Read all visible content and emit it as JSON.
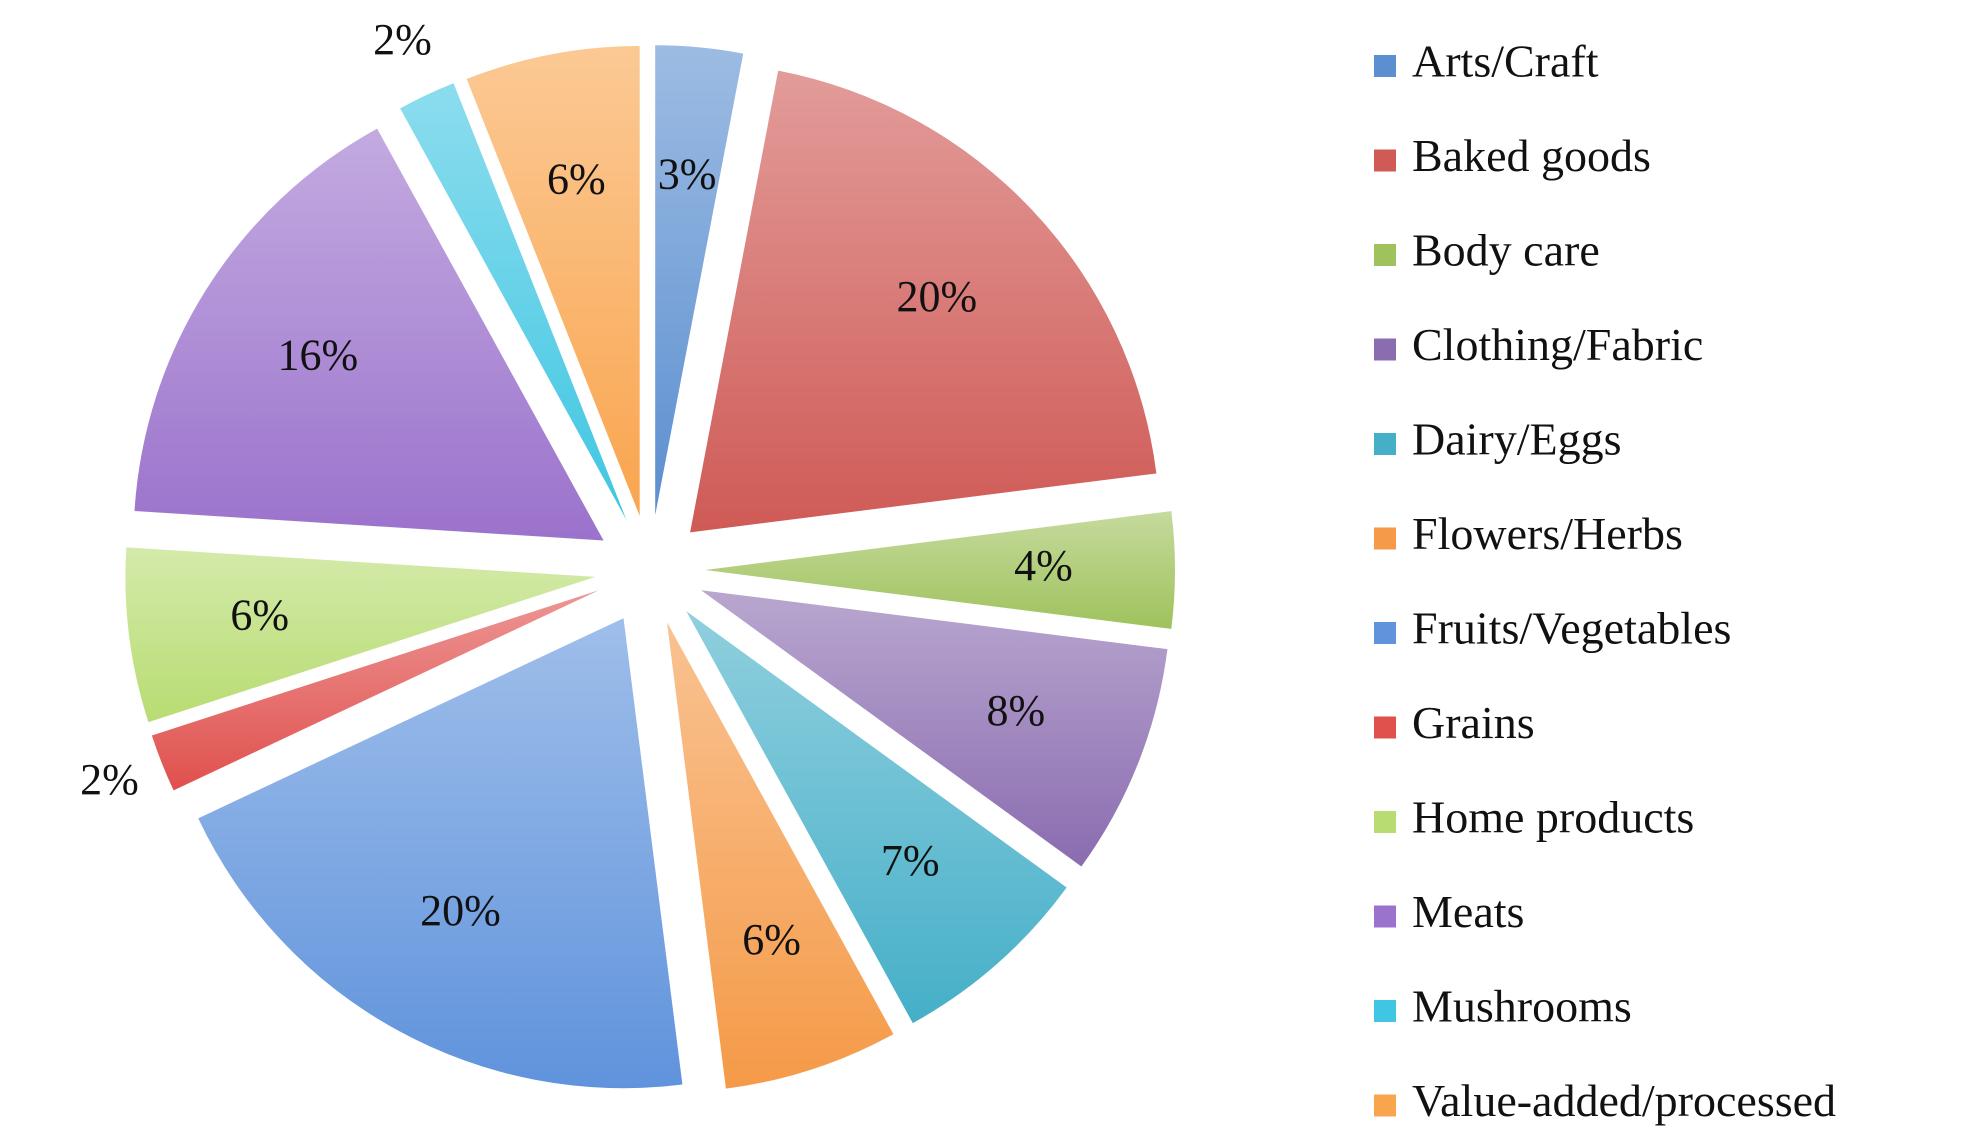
{
  "chart_data": {
    "type": "pie",
    "categories": [
      "Arts/Craft",
      "Baked goods",
      "Body care",
      "Clothing/Fabric",
      "Dairy/Eggs",
      "Flowers/Herbs",
      "Fruits/Vegetables",
      "Grains",
      "Home products",
      "Meats",
      "Mushrooms",
      "Value-added/processed"
    ],
    "values": [
      3,
      20,
      4,
      8,
      7,
      6,
      20,
      2,
      6,
      16,
      2,
      6
    ],
    "value_labels": [
      "3%",
      "20%",
      "4%",
      "8%",
      "7%",
      "6%",
      "20%",
      "2%",
      "6%",
      "16%",
      "2%",
      "6%"
    ],
    "colors": [
      "#5b8fd0",
      "#cf5a56",
      "#9fc25c",
      "#8a6cb0",
      "#45afc8",
      "#f59a48",
      "#5f93dc",
      "#e0504d",
      "#b8dc72",
      "#9b72cc",
      "#3fc6e2",
      "#f9a54e"
    ],
    "legend": "right"
  }
}
